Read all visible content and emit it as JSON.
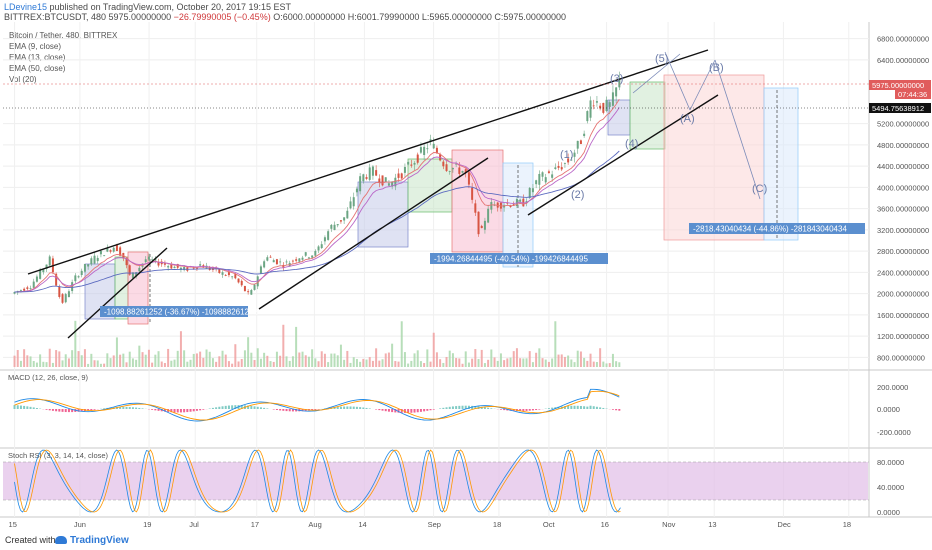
{
  "header": {
    "user": "LDevine15",
    "published": " published on TradingView.com, October 20, 2017 19:15 EST",
    "symbol": "BITTREX:BTCUSDT, 480",
    "price": " 5975.00000000",
    "change": " −26.79990005 (−0.45%)",
    "ohlc": " O:6000.00000000 H:6001.79990000 L:5965.00000000 C:5975.00000000"
  },
  "legend": {
    "title": "Bitcoin / Tether, 480, BITTREX",
    "ema9": "EMA (9, close)",
    "ema13": "EMA (13, close)",
    "ema50": "EMA (50, close)",
    "vol": "Vol (20)"
  },
  "price_axis": {
    "badge_last": "5975.00000000",
    "badge_time": "07:44:36",
    "badge_line": "5494.75638912"
  },
  "indicators": {
    "macd_label": "MACD (12, 26, close, 9)",
    "stoch_label": "Stoch RSI (3, 3, 14, 14, close)",
    "macd_ticks": [
      "200.0000",
      "0.0000",
      "-200.0000"
    ],
    "stoch_ticks": [
      "80.0000",
      "40.0000",
      "0.0000"
    ]
  },
  "annotations": {
    "range1": "-1098.88261252 (-36.67%) -109888261252",
    "range2": "-1994.26844495 (-40.54%) -199426844495",
    "range3": "-2818.43040434 (-44.86%) -281843040434",
    "wave_labels": [
      "(1)",
      "(2)",
      "(3)",
      "(4)",
      "(5)",
      "(A)",
      "(B)",
      "(C)"
    ]
  },
  "footer": {
    "created": "Created with",
    "brand": "TradingView"
  },
  "colors": {
    "candle_up": "#6ba583",
    "candle_down": "#d75442",
    "ema9": "#e57373",
    "ema13": "#ba68c8",
    "ema50": "#5c6bc0",
    "annotation_bg": "#5b8fcf",
    "stoch_fill": "#e1bee7",
    "macd_hist_neg": "#f06292",
    "macd_hist_pos": "#80cbc4"
  },
  "chart_data": {
    "type": "line",
    "series": [
      {
        "name": "Bitcoin / Tether",
        "x": [
          "2017-05-15",
          "2017-05-20",
          "2017-05-25",
          "2017-05-28",
          "2017-06-01",
          "2017-06-06",
          "2017-06-11",
          "2017-06-13",
          "2017-06-15",
          "2017-06-19",
          "2017-06-24",
          "2017-06-29",
          "2017-07-03",
          "2017-07-08",
          "2017-07-12",
          "2017-07-16",
          "2017-07-20",
          "2017-07-25",
          "2017-07-29",
          "2017-08-02",
          "2017-08-06",
          "2017-08-10",
          "2017-08-14",
          "2017-08-17",
          "2017-08-21",
          "2017-08-25",
          "2017-08-29",
          "2017-09-01",
          "2017-09-05",
          "2017-09-10",
          "2017-09-14",
          "2017-09-16",
          "2017-09-20",
          "2017-09-25",
          "2017-09-29",
          "2017-10-03",
          "2017-10-07",
          "2017-10-10",
          "2017-10-13",
          "2017-10-16",
          "2017-10-18",
          "2017-10-20"
        ],
        "values": [
          2000,
          2150,
          2650,
          1800,
          2350,
          2700,
          2900,
          2700,
          2300,
          2650,
          2550,
          2450,
          2550,
          2400,
          2300,
          1950,
          2700,
          2550,
          2700,
          2750,
          3250,
          3450,
          4200,
          4300,
          4050,
          4300,
          4600,
          4850,
          4400,
          4300,
          3050,
          3650,
          3700,
          3700,
          4150,
          4300,
          4500,
          4850,
          5700,
          5500,
          5550,
          5975
        ]
      }
    ],
    "ylim": [
      600,
      7000
    ],
    "xtick_labels": [
      "15",
      "Jun",
      "19",
      "Jul",
      "17",
      "Aug",
      "14",
      "Sep",
      "18",
      "Oct",
      "16",
      "Nov",
      "13",
      "Dec",
      "18"
    ],
    "ytick_labels": [
      "800.00000000",
      "1200.00000000",
      "1600.00000000",
      "2000.00000000",
      "2400.00000000",
      "2800.00000000",
      "3200.00000000",
      "3600.00000000",
      "4000.00000000",
      "4400.00000000",
      "4800.00000000",
      "5200.00000000",
      "6400.00000000",
      "6800.00000000"
    ],
    "grid": true
  }
}
